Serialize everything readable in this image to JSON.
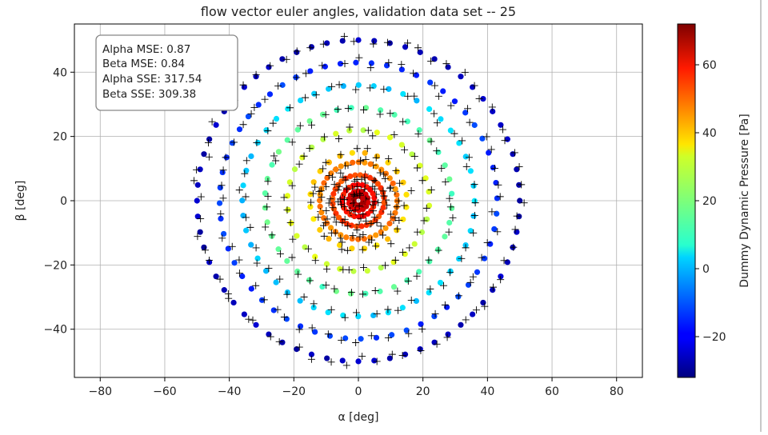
{
  "chart_data": {
    "type": "scatter",
    "title": "flow vector euler angles, validation data set -- 25",
    "xlabel": "α [deg]",
    "ylabel": "β [deg]",
    "xlim": [
      -88,
      88
    ],
    "ylim": [
      -55,
      55
    ],
    "xticks": [
      -80,
      -60,
      -40,
      -20,
      0,
      20,
      40,
      60,
      80
    ],
    "xtick_labels": [
      "−80",
      "−60",
      "−40",
      "−20",
      "0",
      "20",
      "40",
      "60",
      "80"
    ],
    "yticks": [
      -40,
      -20,
      0,
      20,
      40
    ],
    "ytick_labels": [
      "−40",
      "−20",
      "0",
      "20",
      "40"
    ],
    "grid": true,
    "annotation_box": {
      "lines": [
        "Alpha MSE: 0.87",
        "Beta MSE: 0.84",
        "Alpha SSE: 317.54",
        "Beta SSE: 309.38"
      ],
      "placement": "top-left"
    },
    "colorbar": {
      "label": "Dummy Dynamic Pressure [Pa]",
      "colormap": "jet",
      "range": [
        -32,
        72
      ],
      "ticks": [
        -20,
        0,
        20,
        40,
        60
      ],
      "tick_labels": [
        "−20",
        "0",
        "20",
        "40",
        "60"
      ]
    },
    "rings": [
      {
        "radius": 50,
        "count": 64,
        "value": -26
      },
      {
        "radius": 43,
        "count": 56,
        "value": -14
      },
      {
        "radius": 36,
        "count": 48,
        "value": 2
      },
      {
        "radius": 29,
        "count": 40,
        "value": 16
      },
      {
        "radius": 22,
        "count": 32,
        "value": 28
      },
      {
        "radius": 15,
        "count": 24,
        "value": 38
      },
      {
        "radius": 12,
        "count": 40,
        "value": 46
      },
      {
        "radius": 8,
        "count": 32,
        "value": 52
      },
      {
        "radius": 5,
        "count": 22,
        "value": 58
      },
      {
        "radius": 3,
        "count": 14,
        "value": 63
      },
      {
        "radius": 1.5,
        "count": 8,
        "value": 67
      }
    ],
    "legend_markers": {
      "truth": "colored-circle",
      "prediction": "black-plus"
    }
  }
}
